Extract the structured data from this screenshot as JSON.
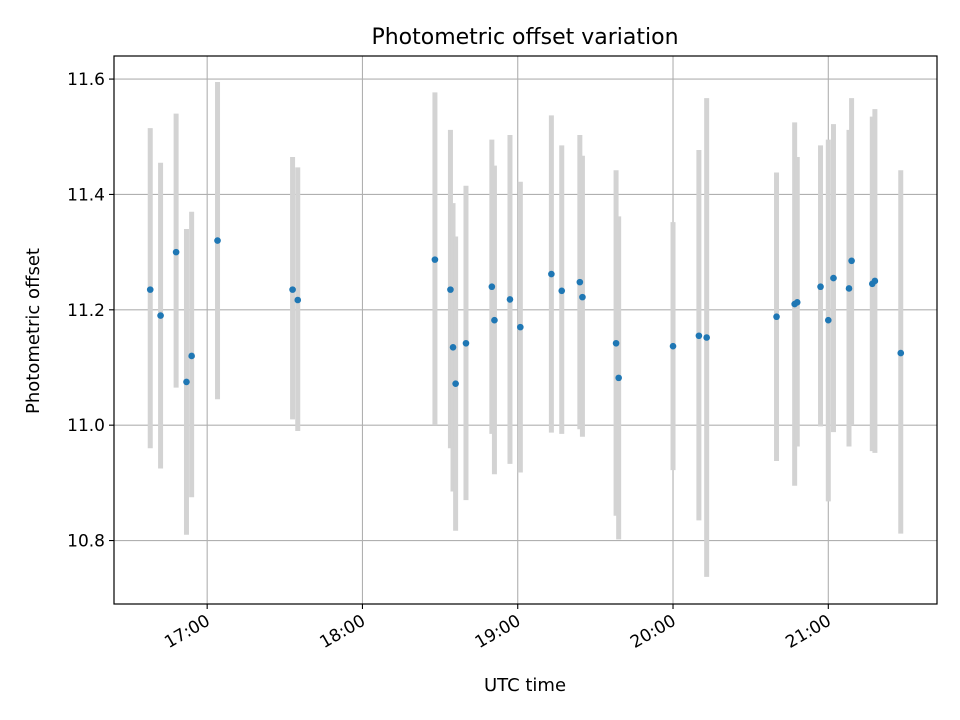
{
  "chart_data": {
    "type": "scatter",
    "title": "Photometric offset variation",
    "xlabel": "UTC time",
    "ylabel": "Photometric offset",
    "x_range": [
      "16:24",
      "21:42"
    ],
    "ylim": [
      10.69,
      11.64
    ],
    "x_ticks": [
      "17:00",
      "18:00",
      "19:00",
      "20:00",
      "21:00"
    ],
    "y_ticks": [
      "10.8",
      "11.0",
      "11.2",
      "11.4",
      "11.6"
    ],
    "grid": true,
    "colors": {
      "point": "#1f77b4",
      "errorbar": "#d3d3d3",
      "grid": "#b0b0b0"
    },
    "points": [
      {
        "x": "16:38",
        "y": 11.235,
        "lo": 10.96,
        "hi": 11.515
      },
      {
        "x": "16:42",
        "y": 11.19,
        "lo": 10.925,
        "hi": 11.455
      },
      {
        "x": "16:48",
        "y": 11.3,
        "lo": 11.065,
        "hi": 11.54
      },
      {
        "x": "16:52",
        "y": 11.075,
        "lo": 10.81,
        "hi": 11.34
      },
      {
        "x": "16:54",
        "y": 11.12,
        "lo": 10.875,
        "hi": 11.37
      },
      {
        "x": "17:04",
        "y": 11.32,
        "lo": 11.045,
        "hi": 11.595
      },
      {
        "x": "17:33",
        "y": 11.235,
        "lo": 11.01,
        "hi": 11.465
      },
      {
        "x": "17:35",
        "y": 11.217,
        "lo": 10.99,
        "hi": 11.447
      },
      {
        "x": "18:28",
        "y": 11.287,
        "lo": 11.0,
        "hi": 11.577
      },
      {
        "x": "18:34",
        "y": 11.235,
        "lo": 10.96,
        "hi": 11.512
      },
      {
        "x": "18:35",
        "y": 11.135,
        "lo": 10.885,
        "hi": 11.385
      },
      {
        "x": "18:36",
        "y": 11.072,
        "lo": 10.817,
        "hi": 11.327
      },
      {
        "x": "18:40",
        "y": 11.142,
        "lo": 10.87,
        "hi": 11.415
      },
      {
        "x": "18:50",
        "y": 11.24,
        "lo": 10.985,
        "hi": 11.495
      },
      {
        "x": "18:51",
        "y": 11.182,
        "lo": 10.915,
        "hi": 11.45
      },
      {
        "x": "18:57",
        "y": 11.218,
        "lo": 10.933,
        "hi": 11.503
      },
      {
        "x": "19:01",
        "y": 11.17,
        "lo": 10.918,
        "hi": 11.422
      },
      {
        "x": "19:13",
        "y": 11.262,
        "lo": 10.987,
        "hi": 11.537
      },
      {
        "x": "19:17",
        "y": 11.233,
        "lo": 10.985,
        "hi": 11.485
      },
      {
        "x": "19:24",
        "y": 11.248,
        "lo": 10.993,
        "hi": 11.503
      },
      {
        "x": "19:25",
        "y": 11.222,
        "lo": 10.98,
        "hi": 11.467
      },
      {
        "x": "19:38",
        "y": 11.142,
        "lo": 10.843,
        "hi": 11.442
      },
      {
        "x": "19:39",
        "y": 11.082,
        "lo": 10.802,
        "hi": 11.362
      },
      {
        "x": "20:00",
        "y": 11.137,
        "lo": 10.922,
        "hi": 11.352
      },
      {
        "x": "20:10",
        "y": 11.155,
        "lo": 10.835,
        "hi": 11.477
      },
      {
        "x": "20:13",
        "y": 11.152,
        "lo": 10.737,
        "hi": 11.567
      },
      {
        "x": "20:40",
        "y": 11.188,
        "lo": 10.938,
        "hi": 11.438
      },
      {
        "x": "20:47",
        "y": 11.21,
        "lo": 10.895,
        "hi": 11.525
      },
      {
        "x": "20:48",
        "y": 11.213,
        "lo": 10.963,
        "hi": 11.465
      },
      {
        "x": "20:57",
        "y": 11.24,
        "lo": 10.998,
        "hi": 11.485
      },
      {
        "x": "21:00",
        "y": 11.182,
        "lo": 10.868,
        "hi": 11.495
      },
      {
        "x": "21:02",
        "y": 11.255,
        "lo": 10.988,
        "hi": 11.522
      },
      {
        "x": "21:08",
        "y": 11.237,
        "lo": 10.963,
        "hi": 11.512
      },
      {
        "x": "21:09",
        "y": 11.285,
        "lo": 11.0,
        "hi": 11.567
      },
      {
        "x": "21:17",
        "y": 11.245,
        "lo": 10.955,
        "hi": 11.535
      },
      {
        "x": "21:18",
        "y": 11.25,
        "lo": 10.952,
        "hi": 11.548
      },
      {
        "x": "21:28",
        "y": 11.125,
        "lo": 10.812,
        "hi": 11.442
      }
    ]
  }
}
